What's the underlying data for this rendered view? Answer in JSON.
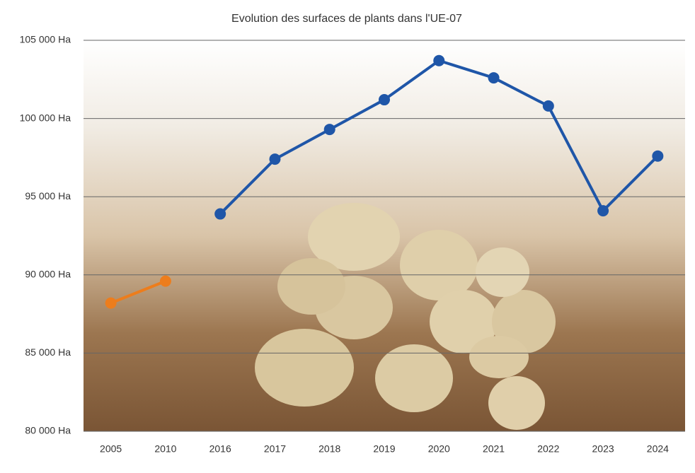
{
  "chart_data": {
    "type": "line",
    "title": "Evolution des surfaces de plants dans l'UE-07",
    "categories": [
      "2005",
      "2010",
      "2016",
      "2017",
      "2018",
      "2019",
      "2020",
      "2021",
      "2022",
      "2023",
      "2024"
    ],
    "series": [
      {
        "color": "#ed7d1c",
        "values": [
          88200,
          89600,
          null,
          null,
          null,
          null,
          null,
          null,
          null,
          null,
          null
        ]
      },
      {
        "color": "#1f56a8",
        "values": [
          null,
          null,
          93900,
          97400,
          99300,
          101200,
          103700,
          102600,
          100800,
          94100,
          97600
        ]
      }
    ],
    "ylim": [
      80000,
      105000
    ],
    "yticks": [
      {
        "value": 80000,
        "label": "80 000 Ha"
      },
      {
        "value": 85000,
        "label": "85 000 Ha"
      },
      {
        "value": 90000,
        "label": "90 000 Ha"
      },
      {
        "value": 95000,
        "label": "95 000 Ha"
      },
      {
        "value": 100000,
        "label": "100 000 Ha"
      },
      {
        "value": 105000,
        "label": "105 000 Ha"
      }
    ],
    "grid": true
  }
}
